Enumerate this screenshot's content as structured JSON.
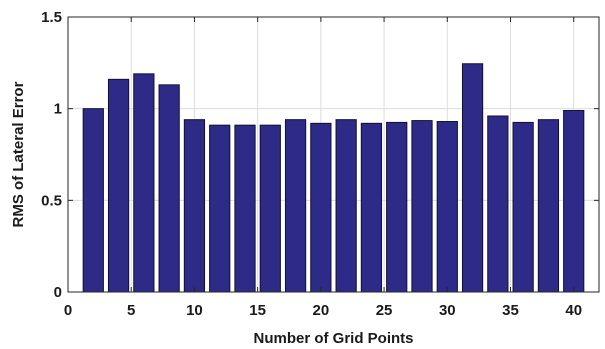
{
  "chart_data": {
    "type": "bar",
    "title": "",
    "xlabel": "Number of Grid Points",
    "ylabel": "RMS of Lateral Error",
    "xlim": [
      0,
      42
    ],
    "ylim": [
      0,
      1.5
    ],
    "xticks": [
      0,
      5,
      10,
      15,
      20,
      25,
      30,
      35,
      40
    ],
    "xtick_labels": [
      "0",
      "5",
      "10",
      "15",
      "20",
      "25",
      "30",
      "35",
      "40"
    ],
    "yticks": [
      0,
      0.5,
      1,
      1.5
    ],
    "ytick_labels": [
      "0",
      "0.5",
      "1",
      "1.5"
    ],
    "grid": true,
    "bar_color": "#2e2a87",
    "x": [
      2,
      4,
      6,
      8,
      10,
      12,
      14,
      16,
      18,
      20,
      22,
      24,
      26,
      28,
      30,
      32,
      34,
      36,
      38,
      40
    ],
    "values": [
      1.0,
      1.16,
      1.19,
      1.13,
      0.94,
      0.91,
      0.91,
      0.91,
      0.94,
      0.92,
      0.94,
      0.92,
      0.925,
      0.935,
      0.93,
      1.245,
      0.96,
      0.925,
      0.94,
      0.99
    ]
  }
}
